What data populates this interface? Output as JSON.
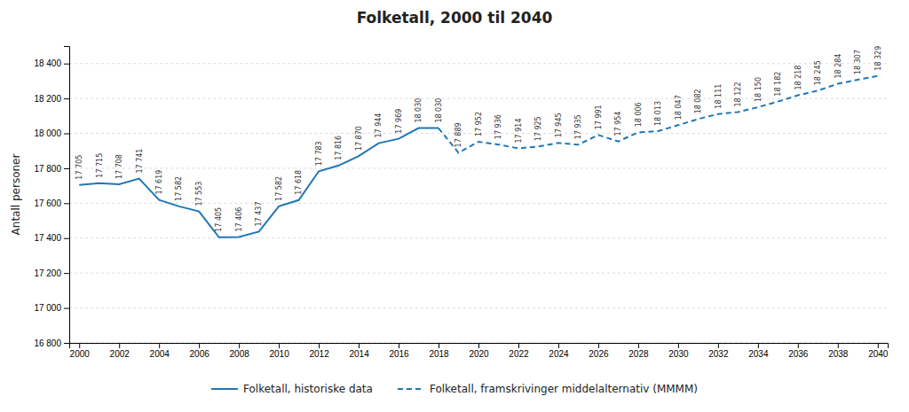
{
  "chart_data": {
    "type": "line",
    "title": "Folketall, 2000 til 2040",
    "ylabel": "Antall personer",
    "x": [
      2000,
      2001,
      2002,
      2003,
      2004,
      2005,
      2006,
      2007,
      2008,
      2009,
      2010,
      2011,
      2012,
      2013,
      2014,
      2015,
      2016,
      2017,
      2018,
      2019,
      2020,
      2021,
      2022,
      2023,
      2024,
      2025,
      2026,
      2027,
      2028,
      2029,
      2030,
      2031,
      2032,
      2033,
      2034,
      2035,
      2036,
      2037,
      2038,
      2039,
      2040
    ],
    "series": [
      {
        "name": "Folketall, historiske data",
        "line_style": "solid",
        "values": [
          17705,
          17715,
          17708,
          17741,
          17619,
          17582,
          17553,
          17405,
          17406,
          17437,
          17582,
          17618,
          17783,
          17816,
          17870,
          17944,
          17969,
          18030,
          18030,
          null,
          null,
          null,
          null,
          null,
          null,
          null,
          null,
          null,
          null,
          null,
          null,
          null,
          null,
          null,
          null,
          null,
          null,
          null,
          null,
          null,
          null
        ],
        "value_labels": [
          "17 705",
          "17 715",
          "17 708",
          "17 741",
          "17 619",
          "17 582",
          "17 553",
          "17 405",
          "17 406",
          "17 437",
          "17 582",
          "17 618",
          "17 783",
          "17 816",
          "17 870",
          "17 944",
          "17 969",
          "18 030",
          "18 030",
          null,
          null,
          null,
          null,
          null,
          null,
          null,
          null,
          null,
          null,
          null,
          null,
          null,
          null,
          null,
          null,
          null,
          null,
          null,
          null,
          null,
          null
        ]
      },
      {
        "name": "Folketall, framskrivinger middelalternativ (MMMM)",
        "line_style": "dashed",
        "values": [
          null,
          null,
          null,
          null,
          null,
          null,
          null,
          null,
          null,
          null,
          null,
          null,
          null,
          null,
          null,
          null,
          null,
          null,
          18030,
          17889,
          17952,
          17936,
          17914,
          17925,
          17945,
          17935,
          17991,
          17954,
          18006,
          18013,
          18047,
          18082,
          18111,
          18122,
          18150,
          18182,
          18218,
          18245,
          18284,
          18307,
          18329
        ],
        "value_labels": [
          null,
          null,
          null,
          null,
          null,
          null,
          null,
          null,
          null,
          null,
          null,
          null,
          null,
          null,
          null,
          null,
          null,
          null,
          null,
          "17 889",
          "17 952",
          "17 936",
          "17 914",
          "17 925",
          "17 945",
          "17 935",
          "17 991",
          "17 954",
          "18 006",
          "18 013",
          "18 047",
          "18 082",
          "18 111",
          "18 122",
          "18 150",
          "18 182",
          "18 218",
          "18 245",
          "18 284",
          "18 307",
          "18 329"
        ]
      }
    ],
    "xlim": [
      1999.5,
      2040.5
    ],
    "xticks": [
      2000,
      2002,
      2004,
      2006,
      2008,
      2010,
      2012,
      2014,
      2016,
      2018,
      2020,
      2022,
      2024,
      2026,
      2028,
      2030,
      2032,
      2034,
      2036,
      2038,
      2040
    ],
    "ylim": [
      16800,
      18500
    ],
    "yticks": [
      {
        "value": 16800,
        "label": "16 800"
      },
      {
        "value": 17000,
        "label": "17 000"
      },
      {
        "value": 17200,
        "label": "17 200"
      },
      {
        "value": 17400,
        "label": "17 400"
      },
      {
        "value": 17600,
        "label": "17 600"
      },
      {
        "value": 17800,
        "label": "17 800"
      },
      {
        "value": 18000,
        "label": "18 000"
      },
      {
        "value": 18200,
        "label": "18 200"
      },
      {
        "value": 18400,
        "label": "18 400"
      }
    ],
    "grid": true,
    "legend": "bottom",
    "data_labels": true
  }
}
